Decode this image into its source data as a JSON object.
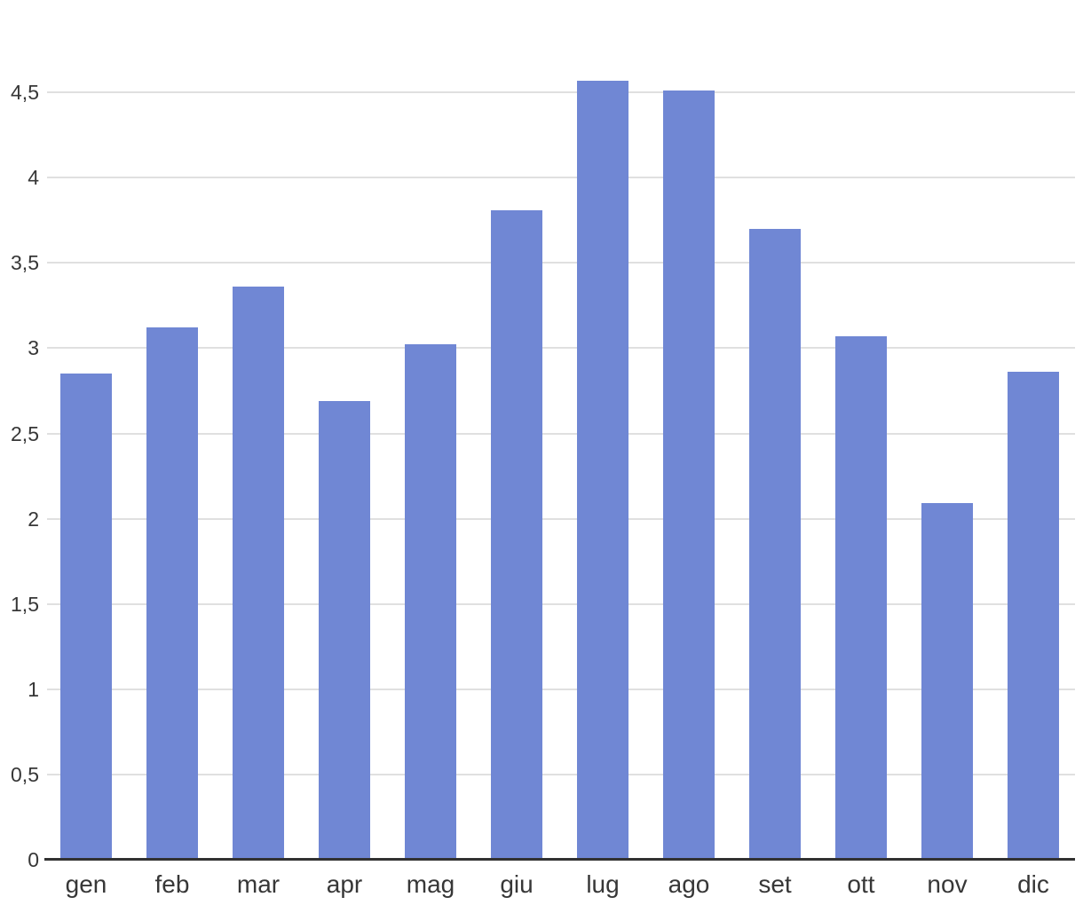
{
  "chart_data": {
    "type": "bar",
    "title": "",
    "xlabel": "",
    "ylabel": "",
    "categories": [
      "gen",
      "feb",
      "mar",
      "apr",
      "mag",
      "giu",
      "lug",
      "ago",
      "set",
      "ott",
      "nov",
      "dic"
    ],
    "values": [
      2.84,
      3.11,
      3.35,
      2.68,
      3.01,
      3.8,
      4.56,
      4.5,
      3.69,
      3.06,
      2.08,
      2.85
    ],
    "series": [
      {
        "name": "",
        "values": [
          2.84,
          3.11,
          3.35,
          2.68,
          3.01,
          3.8,
          4.56,
          4.5,
          3.69,
          3.06,
          2.08,
          2.85
        ]
      }
    ],
    "ylim": [
      0,
      5
    ],
    "yticks": [
      0,
      0.5,
      1,
      1.5,
      2,
      2.5,
      3,
      3.5,
      4,
      4.5
    ],
    "ytick_labels": [
      "0",
      "0,5",
      "1",
      "1,5",
      "2",
      "2,5",
      "3",
      "3,5",
      "4",
      "4,5"
    ],
    "decimal_separator": ",",
    "grid": true,
    "legend": "none",
    "colors": {
      "bar": "#7087d4",
      "gridline": "#e0e0e0",
      "axis_line": "#313131",
      "tick_text": "#373737",
      "background": "#ffffff"
    }
  }
}
